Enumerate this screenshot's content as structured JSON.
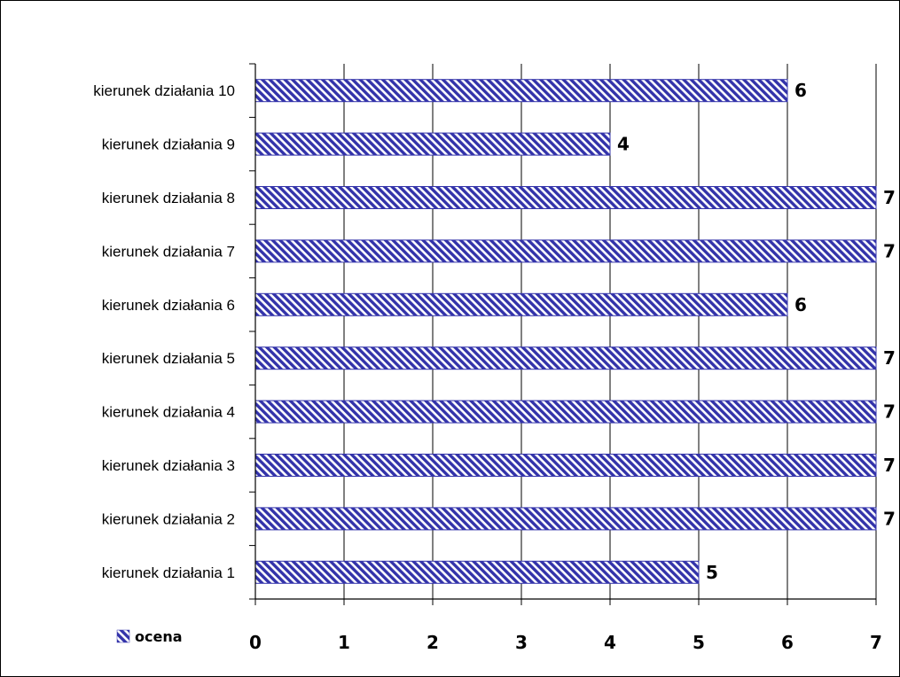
{
  "chart_data": {
    "type": "bar",
    "orientation": "horizontal",
    "title": "",
    "xlabel": "",
    "ylabel": "",
    "categories": [
      "kierunek działania 1",
      "kierunek działania 2",
      "kierunek działania 3",
      "kierunek działania 4",
      "kierunek działania 5",
      "kierunek działania 6",
      "kierunek działania 7",
      "kierunek działania 8",
      "kierunek działania 9",
      "kierunek działania 10"
    ],
    "series": [
      {
        "name": "ocena",
        "values": [
          5,
          7,
          7,
          7,
          7,
          6,
          7,
          7,
          4,
          6
        ],
        "color": "#3333aa",
        "pattern": "diagonal-hatch"
      }
    ],
    "xlim": [
      0,
      7
    ],
    "xticks": [
      "0",
      "1",
      "2",
      "3",
      "4",
      "5",
      "6",
      "7"
    ],
    "grid": "vertical",
    "data_labels": true,
    "legend_position": "bottom-left"
  }
}
